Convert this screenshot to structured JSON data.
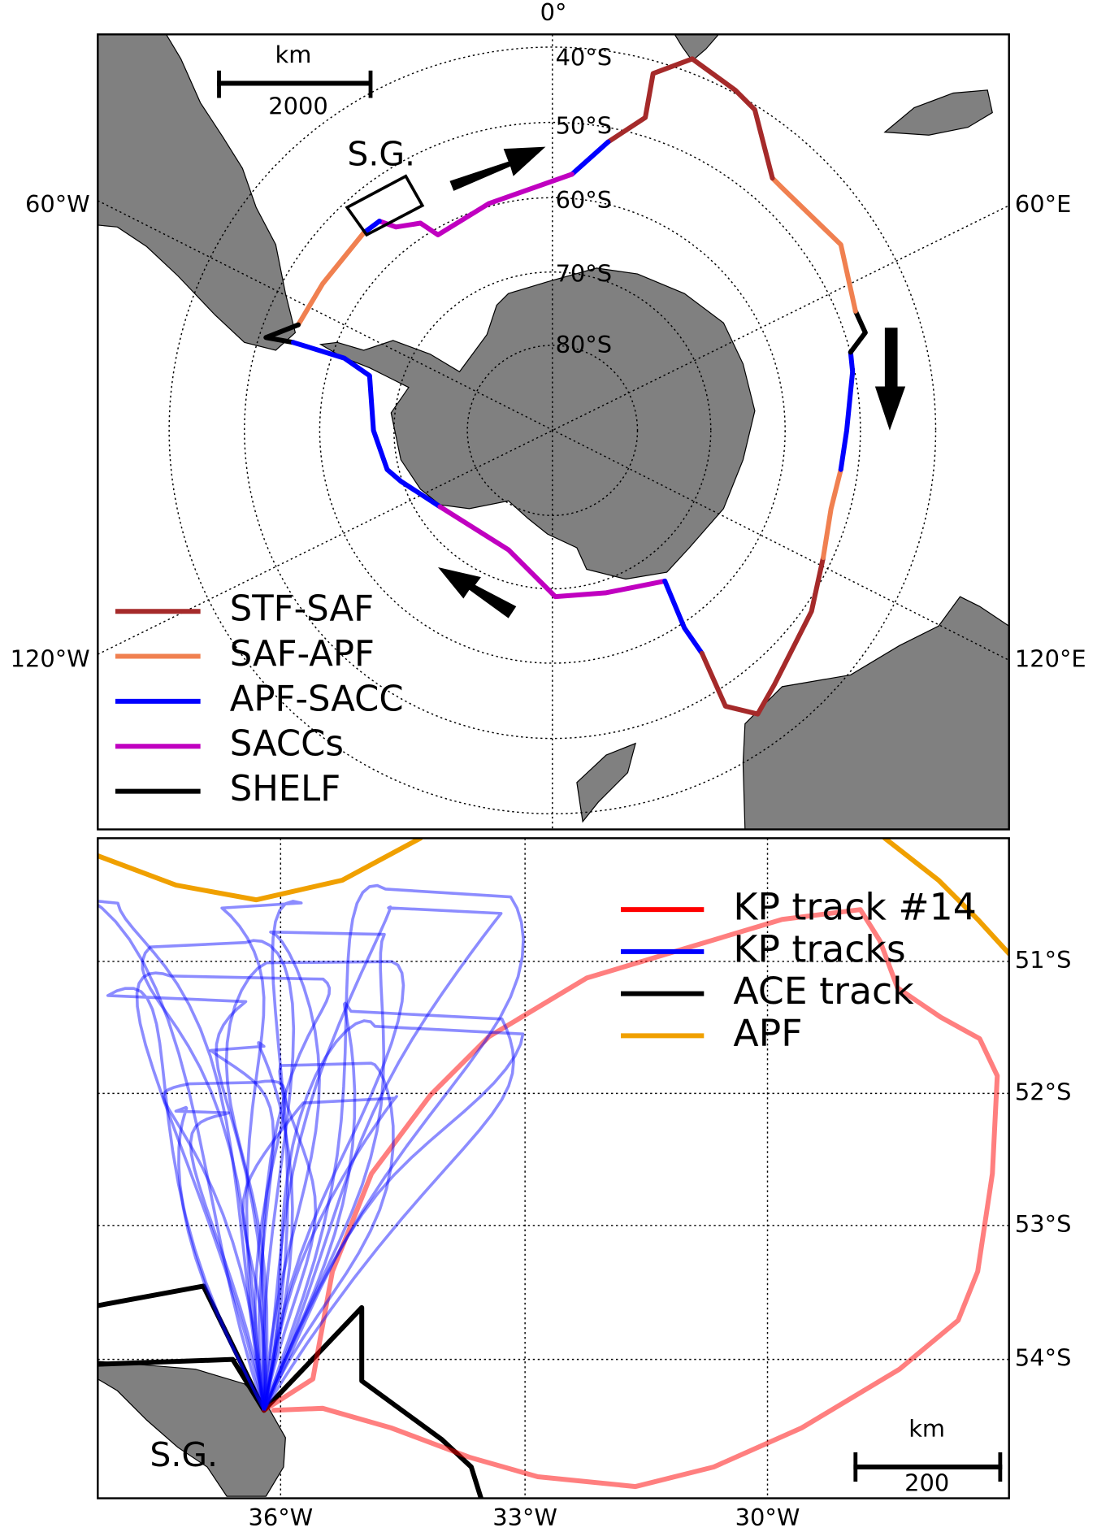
{
  "top_map": {
    "meridian_labels": [
      "0°",
      "60°E",
      "120°E",
      "120°W",
      "60°W"
    ],
    "parallel_labels": [
      "40°S",
      "50°S",
      "60°S",
      "70°S",
      "80°S"
    ],
    "scale_bar": {
      "unit": "km",
      "length": 2000
    },
    "region_label": "S.G.",
    "legend": [
      {
        "label": "STF-SAF",
        "color": "#a52a2a"
      },
      {
        "label": "SAF-APF",
        "color": "#f08050"
      },
      {
        "label": "APF-SACC",
        "color": "#0000ff"
      },
      {
        "label": "SACCs",
        "color": "#c000c0"
      },
      {
        "label": "SHELF",
        "color": "#000000"
      }
    ]
  },
  "bottom_map": {
    "lon_labels": [
      "36°W",
      "33°W",
      "30°W"
    ],
    "lat_labels": [
      "51°S",
      "52°S",
      "53°S",
      "54°S"
    ],
    "scale_bar": {
      "unit": "km",
      "length": 200
    },
    "region_label": "S.G.",
    "legend": [
      {
        "label": "KP track #14",
        "color": "#ff0000"
      },
      {
        "label": "KP tracks",
        "color": "#0000ff"
      },
      {
        "label": "ACE track",
        "color": "#000000"
      },
      {
        "label": "APF",
        "color": "#f0a000"
      }
    ]
  }
}
